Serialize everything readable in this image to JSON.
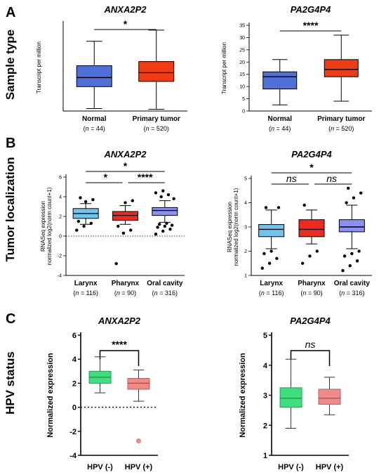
{
  "panels": [
    {
      "letter": "A",
      "row_label": "Sample type"
    },
    {
      "letter": "B",
      "row_label": "Tumor localization"
    },
    {
      "letter": "C",
      "row_label": "HPV status"
    }
  ],
  "chart_data": [
    {
      "id": "A1",
      "type": "box",
      "title": "ANXA2P2",
      "ylabel": "Transcript per million",
      "ylim": [
        0,
        2500
      ],
      "yticks": [],
      "categories": [
        "Normal",
        "Primary tumor"
      ],
      "n_labels": [
        [
          "(",
          "n",
          " = 44)"
        ],
        [
          "(",
          "n",
          " = 520)"
        ]
      ],
      "boxes": [
        {
          "min": 70,
          "q1": 700,
          "median": 960,
          "q3": 1300,
          "max": 2000,
          "color": "#4f6fd9",
          "outliers": []
        },
        {
          "min": 50,
          "q1": 850,
          "median": 1100,
          "q3": 1420,
          "max": 2320,
          "color": "#f03c14",
          "outliers": []
        }
      ],
      "significance": [
        {
          "from": 0,
          "to": 1,
          "label": "*",
          "italic": false
        }
      ],
      "baseline": null
    },
    {
      "id": "A2",
      "type": "box",
      "title": "PA2G4P4",
      "ylabel": "Transcript per million",
      "ylim": [
        0,
        35
      ],
      "yticks": [
        0,
        5,
        10,
        15,
        20,
        25,
        30,
        35
      ],
      "categories": [
        "Normal",
        "Primary tumor"
      ],
      "n_labels": [
        [
          "(",
          "n",
          " = 44)"
        ],
        [
          "(",
          "n",
          " = 520)"
        ]
      ],
      "boxes": [
        {
          "min": 2.5,
          "q1": 9,
          "median": 14,
          "q3": 16,
          "max": 21,
          "color": "#4f6fd9",
          "outliers": []
        },
        {
          "min": 4,
          "q1": 14,
          "median": 17,
          "q3": 21,
          "max": 31,
          "color": "#f03c14",
          "outliers": []
        }
      ],
      "significance": [
        {
          "from": 0,
          "to": 1,
          "label": "****",
          "italic": false
        }
      ],
      "baseline": null
    },
    {
      "id": "B1",
      "type": "box",
      "title": "ANXA2P2",
      "ylabel": [
        "RNASeq expression",
        "normalized log2(norm count+1)"
      ],
      "ylim": [
        -4,
        6
      ],
      "yticks": [
        -4,
        -2,
        0,
        2,
        4,
        6
      ],
      "categories": [
        "Larynx",
        "Pharynx",
        "Oral cavity"
      ],
      "n_labels": [
        [
          "(",
          "n",
          " = 116)"
        ],
        [
          "(",
          "n",
          " = 90)"
        ],
        [
          "(",
          "n",
          " = 316)"
        ]
      ],
      "boxes": [
        {
          "min": 1.2,
          "q1": 1.8,
          "median": 2.3,
          "q3": 2.8,
          "max": 3.3,
          "color": "#6ec5ef",
          "outliers": [
            0.6,
            1.0,
            1.3,
            1.5,
            3.5,
            3.7,
            3.9
          ]
        },
        {
          "min": 1.2,
          "q1": 1.6,
          "median": 2.1,
          "q3": 2.5,
          "max": 3.1,
          "color": "#f0281e",
          "outliers": [
            -2.8,
            0.3,
            0.6,
            1.0,
            3.4,
            3.6
          ]
        },
        {
          "min": 1.4,
          "q1": 2.1,
          "median": 2.6,
          "q3": 2.9,
          "max": 3.6,
          "color": "#8c8ff3",
          "outliers": [
            0.2,
            0.5,
            0.7,
            0.9,
            1.0,
            1.1,
            1.2,
            1.3,
            3.8,
            4.0,
            4.2,
            4.4,
            4.6
          ]
        }
      ],
      "significance": [
        {
          "from": 0,
          "to": 1,
          "label": "*",
          "italic": false,
          "level": 0
        },
        {
          "from": 1,
          "to": 2,
          "label": "****",
          "italic": false,
          "level": 0
        },
        {
          "from": 0,
          "to": 2,
          "label": "*",
          "italic": false,
          "level": 1
        }
      ],
      "baseline": 0
    },
    {
      "id": "B2",
      "type": "box",
      "title": "PA2G4P4",
      "ylabel": [
        "RNASeq expression",
        "normalized log2(norm count+1)"
      ],
      "ylim": [
        1,
        5
      ],
      "yticks": [
        1,
        2,
        3,
        4,
        5
      ],
      "categories": [
        "Larynx",
        "Pharynx",
        "Oral cavity"
      ],
      "n_labels": [
        [
          "(",
          "n",
          " = 116)"
        ],
        [
          "(",
          "n",
          " = 90)"
        ],
        [
          "(",
          "n",
          " = 316)"
        ]
      ],
      "boxes": [
        {
          "min": 2.1,
          "q1": 2.6,
          "median": 2.9,
          "q3": 3.1,
          "max": 3.7,
          "color": "#6ec5ef",
          "outliers": [
            1.3,
            1.5,
            1.7,
            1.9,
            2.0,
            3.8,
            3.8
          ]
        },
        {
          "min": 2.3,
          "q1": 2.6,
          "median": 2.9,
          "q3": 3.3,
          "max": 3.7,
          "color": "#f0281e",
          "outliers": [
            1.5,
            1.8,
            2.0,
            3.9
          ]
        },
        {
          "min": 2.1,
          "q1": 2.8,
          "median": 3.0,
          "q3": 3.3,
          "max": 3.9,
          "color": "#8c8ff3",
          "outliers": [
            1.2,
            1.4,
            1.6,
            1.8,
            1.9,
            2.0,
            4.0,
            4.2,
            4.4,
            4.6
          ]
        }
      ],
      "significance": [
        {
          "from": 0,
          "to": 1,
          "label": "ns",
          "italic": true,
          "level": 0
        },
        {
          "from": 1,
          "to": 2,
          "label": "ns",
          "italic": true,
          "level": 0
        },
        {
          "from": 0,
          "to": 2,
          "label": "*",
          "italic": false,
          "level": 1
        }
      ],
      "baseline": null
    },
    {
      "id": "C1",
      "type": "box",
      "title": "ANXA2P2",
      "ylabel": "Normalized expression",
      "ylim": [
        -4,
        6
      ],
      "yticks": [
        -4,
        -2,
        0,
        2,
        4,
        6
      ],
      "categories": [
        "HPV (-)",
        "HPV (+)"
      ],
      "n_labels": [],
      "boxes": [
        {
          "min": 1.2,
          "q1": 2.0,
          "median": 2.5,
          "q3": 3.0,
          "max": 4.2,
          "color": "#3ee07e",
          "outliers": []
        },
        {
          "min": 0.5,
          "q1": 1.5,
          "median": 2.0,
          "q3": 2.4,
          "max": 3.1,
          "color": "#f28a8a",
          "outliers": [
            -2.8
          ]
        }
      ],
      "significance": [
        {
          "from": 0,
          "to": 1,
          "label": "****",
          "italic": false
        }
      ],
      "baseline": 0
    },
    {
      "id": "C2",
      "type": "box",
      "title": "PA2G4P4",
      "ylabel": "Normalized expression",
      "ylim": [
        1,
        5
      ],
      "yticks": [
        1,
        2,
        3,
        4,
        5
      ],
      "categories": [
        "HPV (-)",
        "HPV (+)"
      ],
      "n_labels": [],
      "boxes": [
        {
          "min": 1.9,
          "q1": 2.6,
          "median": 2.9,
          "q3": 3.25,
          "max": 4.2,
          "color": "#3ee07e",
          "outliers": []
        },
        {
          "min": 2.35,
          "q1": 2.7,
          "median": 2.9,
          "q3": 3.2,
          "max": 3.6,
          "color": "#f28a8a",
          "outliers": []
        }
      ],
      "significance": [
        {
          "from": 0,
          "to": 1,
          "label": "ns",
          "italic": true
        }
      ],
      "baseline": null
    }
  ]
}
